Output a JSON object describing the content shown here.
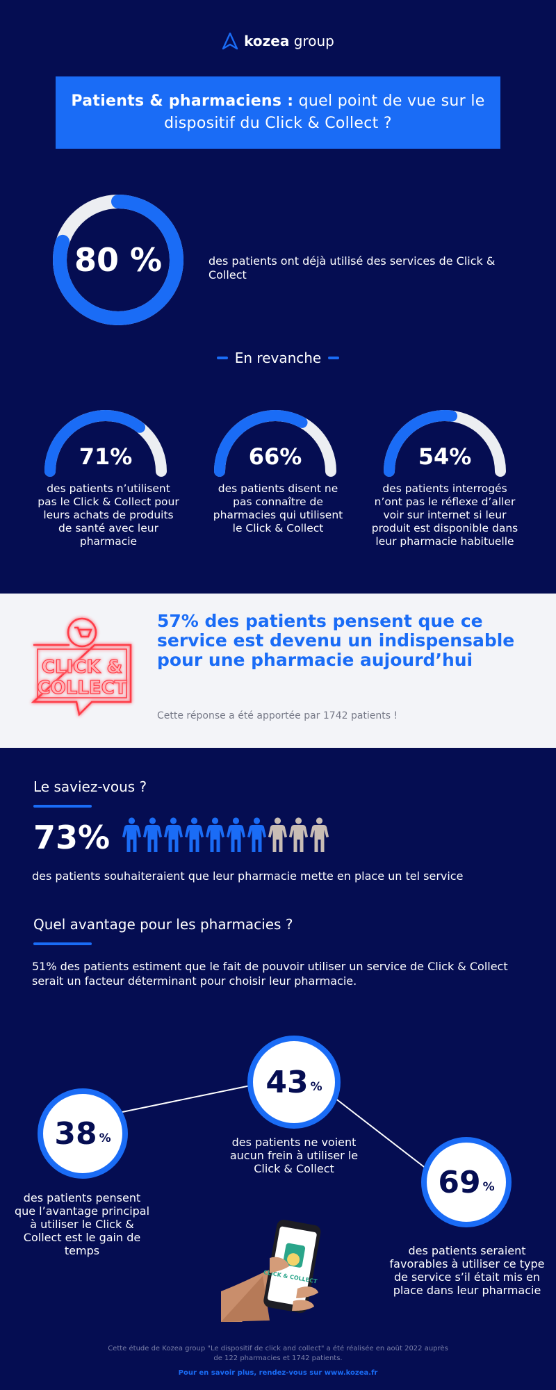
{
  "header": {
    "logo_bold": "kozea",
    "logo_light": "group",
    "title_bold": "Patients & pharmaciens :",
    "title_rest": "quel point de vue sur le dispositif du Click & Collect ?"
  },
  "main_stat": {
    "value": "80 %",
    "fraction": 0.8,
    "description": "des patients ont déjà utilisé des services de Click & Collect"
  },
  "revanche_label": "En revanche",
  "gauges": [
    {
      "value": "71%",
      "fraction": 0.71,
      "description": "des patients n’utilisent pas le Click & Collect pour leurs achats de produits de santé avec leur pharmacie"
    },
    {
      "value": "66%",
      "fraction": 0.66,
      "description": "des patients disent ne pas connaître de pharmacies qui utilisent le Click & Collect"
    },
    {
      "value": "54%",
      "fraction": 0.54,
      "description": "des patients interrogés n’ont pas le réflexe d’aller voir sur internet si leur produit est disponible dans leur pharmacie habituelle"
    }
  ],
  "band": {
    "headline": "57% des patients pensent que ce service est devenu un indispensable pour une pharmacie aujourd’hui",
    "note": "Cette réponse a été apportée par 1742 patients !",
    "sign_line1": "CLICK &",
    "sign_line2": "COLLECT"
  },
  "saviez": {
    "heading": "Le saviez-vous ?",
    "value": "73%",
    "fraction": 0.73,
    "people_total": 10,
    "people_highlighted": 7,
    "description": "des patients souhaiteraient que leur pharmacie mette en place un tel service"
  },
  "avantage": {
    "heading": "Quel avantage pour les pharmacies ?",
    "description": "51% des patients estiment que le fait de pouvoir utiliser un service de Click & Collect serait un facteur déterminant pour choisir leur pharmacie."
  },
  "bubbles": [
    {
      "number": "38",
      "unit": "%",
      "description": "des patients pensent que l’avantage principal à utiliser le Click & Collect est le gain de temps"
    },
    {
      "number": "43",
      "unit": "%",
      "description": "des patients ne voient aucun frein à utiliser le Click & Collect"
    },
    {
      "number": "69",
      "unit": "%",
      "description": "des patients seraient favorables à utiliser ce type de service s’il était mis en place dans leur pharmacie"
    }
  ],
  "phone_label": "CLICK & COLLECT",
  "footer": {
    "note": "Cette étude de Kozea group \"Le dispositif de click and collect\" a été réalisée en août 2022 auprès de 122 pharmacies et 1742 patients.",
    "link": "Pour en savoir plus, rendez-vous sur www.kozea.fr"
  },
  "colors": {
    "background": "#050d52",
    "accent": "#1a6cf6",
    "track": "#eceef2",
    "person_inactive": "#c9bdb5",
    "neon_red": "#ff3b47"
  }
}
